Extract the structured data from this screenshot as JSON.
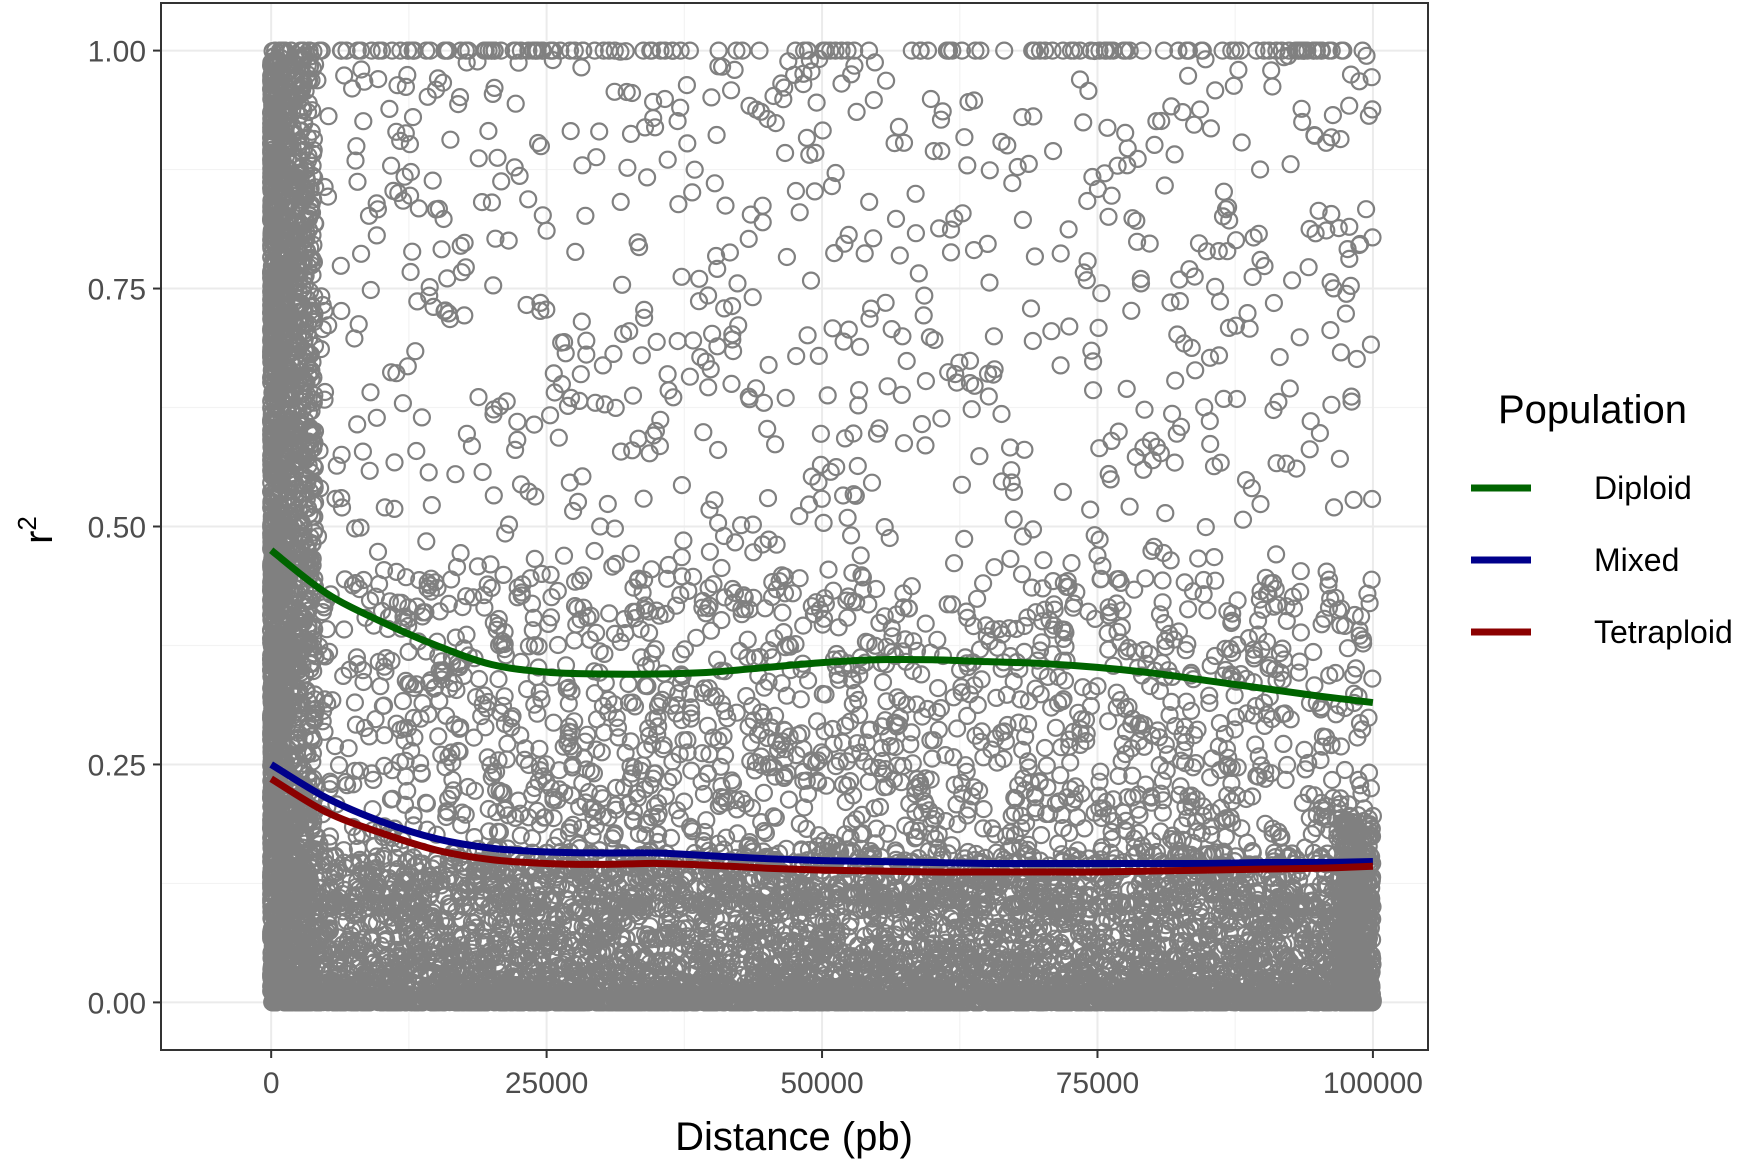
{
  "chart_data": {
    "type": "scatter",
    "xlabel": "Distance (pb)",
    "ylabel": "r",
    "ylabel_superscript": "2",
    "xlim": [
      -10000,
      105000
    ],
    "ylim": [
      -0.05,
      1.05
    ],
    "x_ticks": [
      0,
      25000,
      50000,
      75000,
      100000
    ],
    "x_tick_labels": [
      "0",
      "25000",
      "50000",
      "75000",
      "100000"
    ],
    "y_ticks": [
      0,
      0.25,
      0.5,
      0.75,
      1.0
    ],
    "y_tick_labels": [
      "0.00",
      "0.25",
      "0.50",
      "0.75",
      "1.00"
    ],
    "grid": true,
    "point_color": "#808080",
    "points_description_color": "#808080",
    "legend": {
      "title": "Population",
      "position": "right",
      "entries": [
        {
          "label": "Diploid",
          "color": "#006400"
        },
        {
          "label": "Mixed",
          "color": "#00008b"
        },
        {
          "label": "Tetraploid",
          "color": "#8b0000"
        }
      ]
    },
    "series": [
      {
        "name": "Diploid",
        "color": "#006400",
        "x": [
          0,
          5000,
          10000,
          15000,
          20000,
          25000,
          30000,
          35000,
          40000,
          45000,
          50000,
          55000,
          60000,
          65000,
          70000,
          75000,
          80000,
          85000,
          90000,
          95000,
          100000
        ],
        "y": [
          0.475,
          0.43,
          0.4,
          0.375,
          0.355,
          0.347,
          0.345,
          0.345,
          0.347,
          0.352,
          0.357,
          0.36,
          0.36,
          0.358,
          0.356,
          0.352,
          0.346,
          0.338,
          0.33,
          0.322,
          0.315
        ]
      },
      {
        "name": "Mixed",
        "color": "#00008b",
        "x": [
          0,
          5000,
          10000,
          15000,
          20000,
          25000,
          30000,
          35000,
          40000,
          45000,
          50000,
          55000,
          60000,
          65000,
          70000,
          75000,
          80000,
          85000,
          90000,
          95000,
          100000
        ],
        "y": [
          0.25,
          0.215,
          0.19,
          0.172,
          0.162,
          0.158,
          0.157,
          0.157,
          0.154,
          0.151,
          0.149,
          0.148,
          0.147,
          0.146,
          0.146,
          0.146,
          0.146,
          0.146,
          0.147,
          0.147,
          0.148
        ]
      },
      {
        "name": "Tetraploid",
        "color": "#8b0000",
        "x": [
          0,
          5000,
          10000,
          15000,
          20000,
          25000,
          30000,
          35000,
          40000,
          45000,
          50000,
          55000,
          60000,
          65000,
          70000,
          75000,
          80000,
          85000,
          90000,
          95000,
          100000
        ],
        "y": [
          0.235,
          0.2,
          0.178,
          0.16,
          0.15,
          0.146,
          0.145,
          0.146,
          0.144,
          0.141,
          0.139,
          0.138,
          0.137,
          0.137,
          0.137,
          0.137,
          0.138,
          0.139,
          0.14,
          0.141,
          0.143
        ]
      }
    ]
  }
}
